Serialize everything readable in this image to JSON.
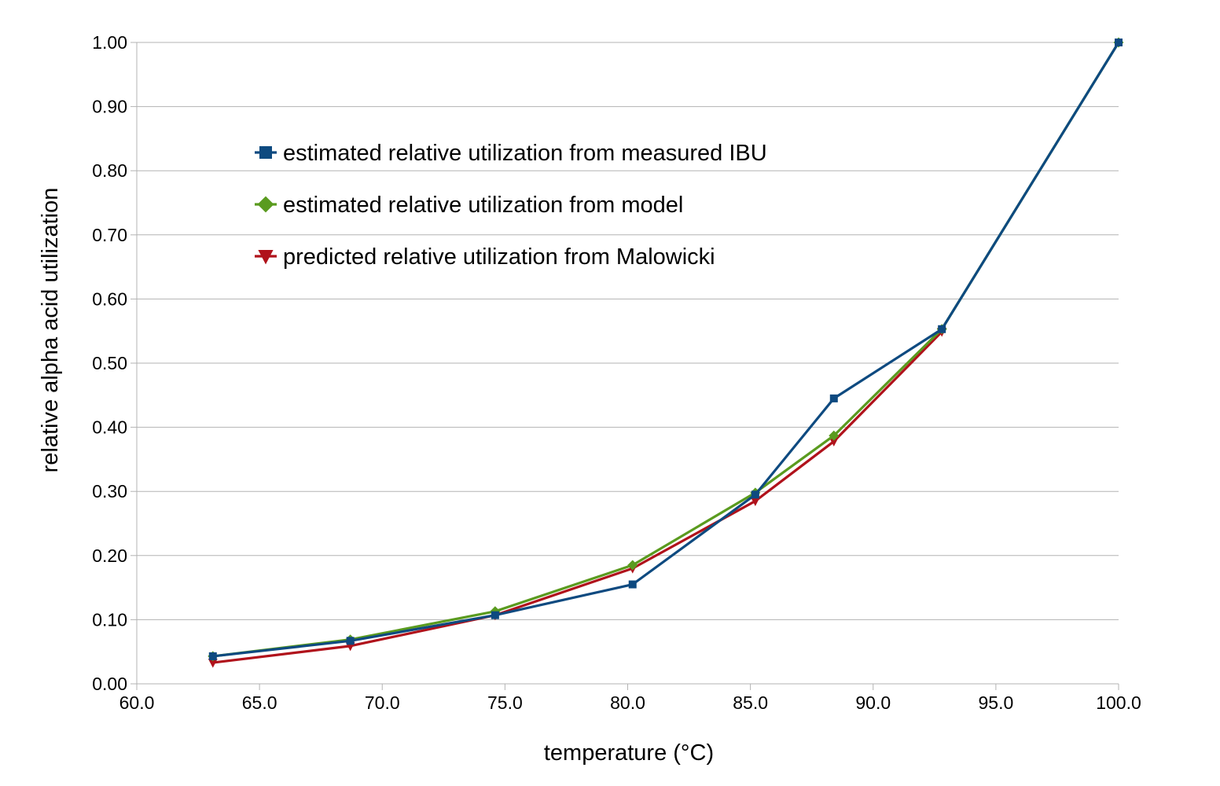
{
  "chart_data": {
    "type": "line",
    "title": "",
    "xlabel": "temperature (°C)",
    "ylabel": "relative alpha acid utilization",
    "xlim": [
      60.0,
      100.0
    ],
    "ylim": [
      0.0,
      1.0
    ],
    "x_ticks": [
      "60.0",
      "65.0",
      "70.0",
      "75.0",
      "80.0",
      "85.0",
      "90.0",
      "95.0",
      "100.0"
    ],
    "y_ticks": [
      "0.00",
      "0.10",
      "0.20",
      "0.30",
      "0.40",
      "0.50",
      "0.60",
      "0.70",
      "0.80",
      "0.90",
      "1.00"
    ],
    "grid": "horizontal",
    "legend_position": "upper-left inside plot",
    "series": [
      {
        "name": "estimated relative utilization from measured IBU",
        "color": "#0e4a80",
        "marker": "square",
        "x": [
          63.1,
          68.7,
          74.6,
          80.2,
          85.2,
          88.4,
          92.8,
          100.0
        ],
        "y": [
          0.043,
          0.067,
          0.107,
          0.155,
          0.295,
          0.445,
          0.553,
          1.0
        ]
      },
      {
        "name": "estimated relative utilization from model",
        "color": "#5a9b1f",
        "marker": "diamond",
        "x": [
          63.1,
          68.7,
          74.6,
          80.2,
          85.2,
          88.4,
          92.8,
          100.0
        ],
        "y": [
          0.043,
          0.069,
          0.113,
          0.185,
          0.298,
          0.387,
          0.553,
          1.0
        ]
      },
      {
        "name": "predicted relative utilization from Malowicki",
        "color": "#b0121b",
        "marker": "triangle-down",
        "x": [
          63.1,
          68.7,
          74.6,
          80.2,
          85.2,
          88.4,
          92.8
        ],
        "y": [
          0.033,
          0.059,
          0.107,
          0.18,
          0.285,
          0.378,
          0.549
        ]
      }
    ]
  }
}
